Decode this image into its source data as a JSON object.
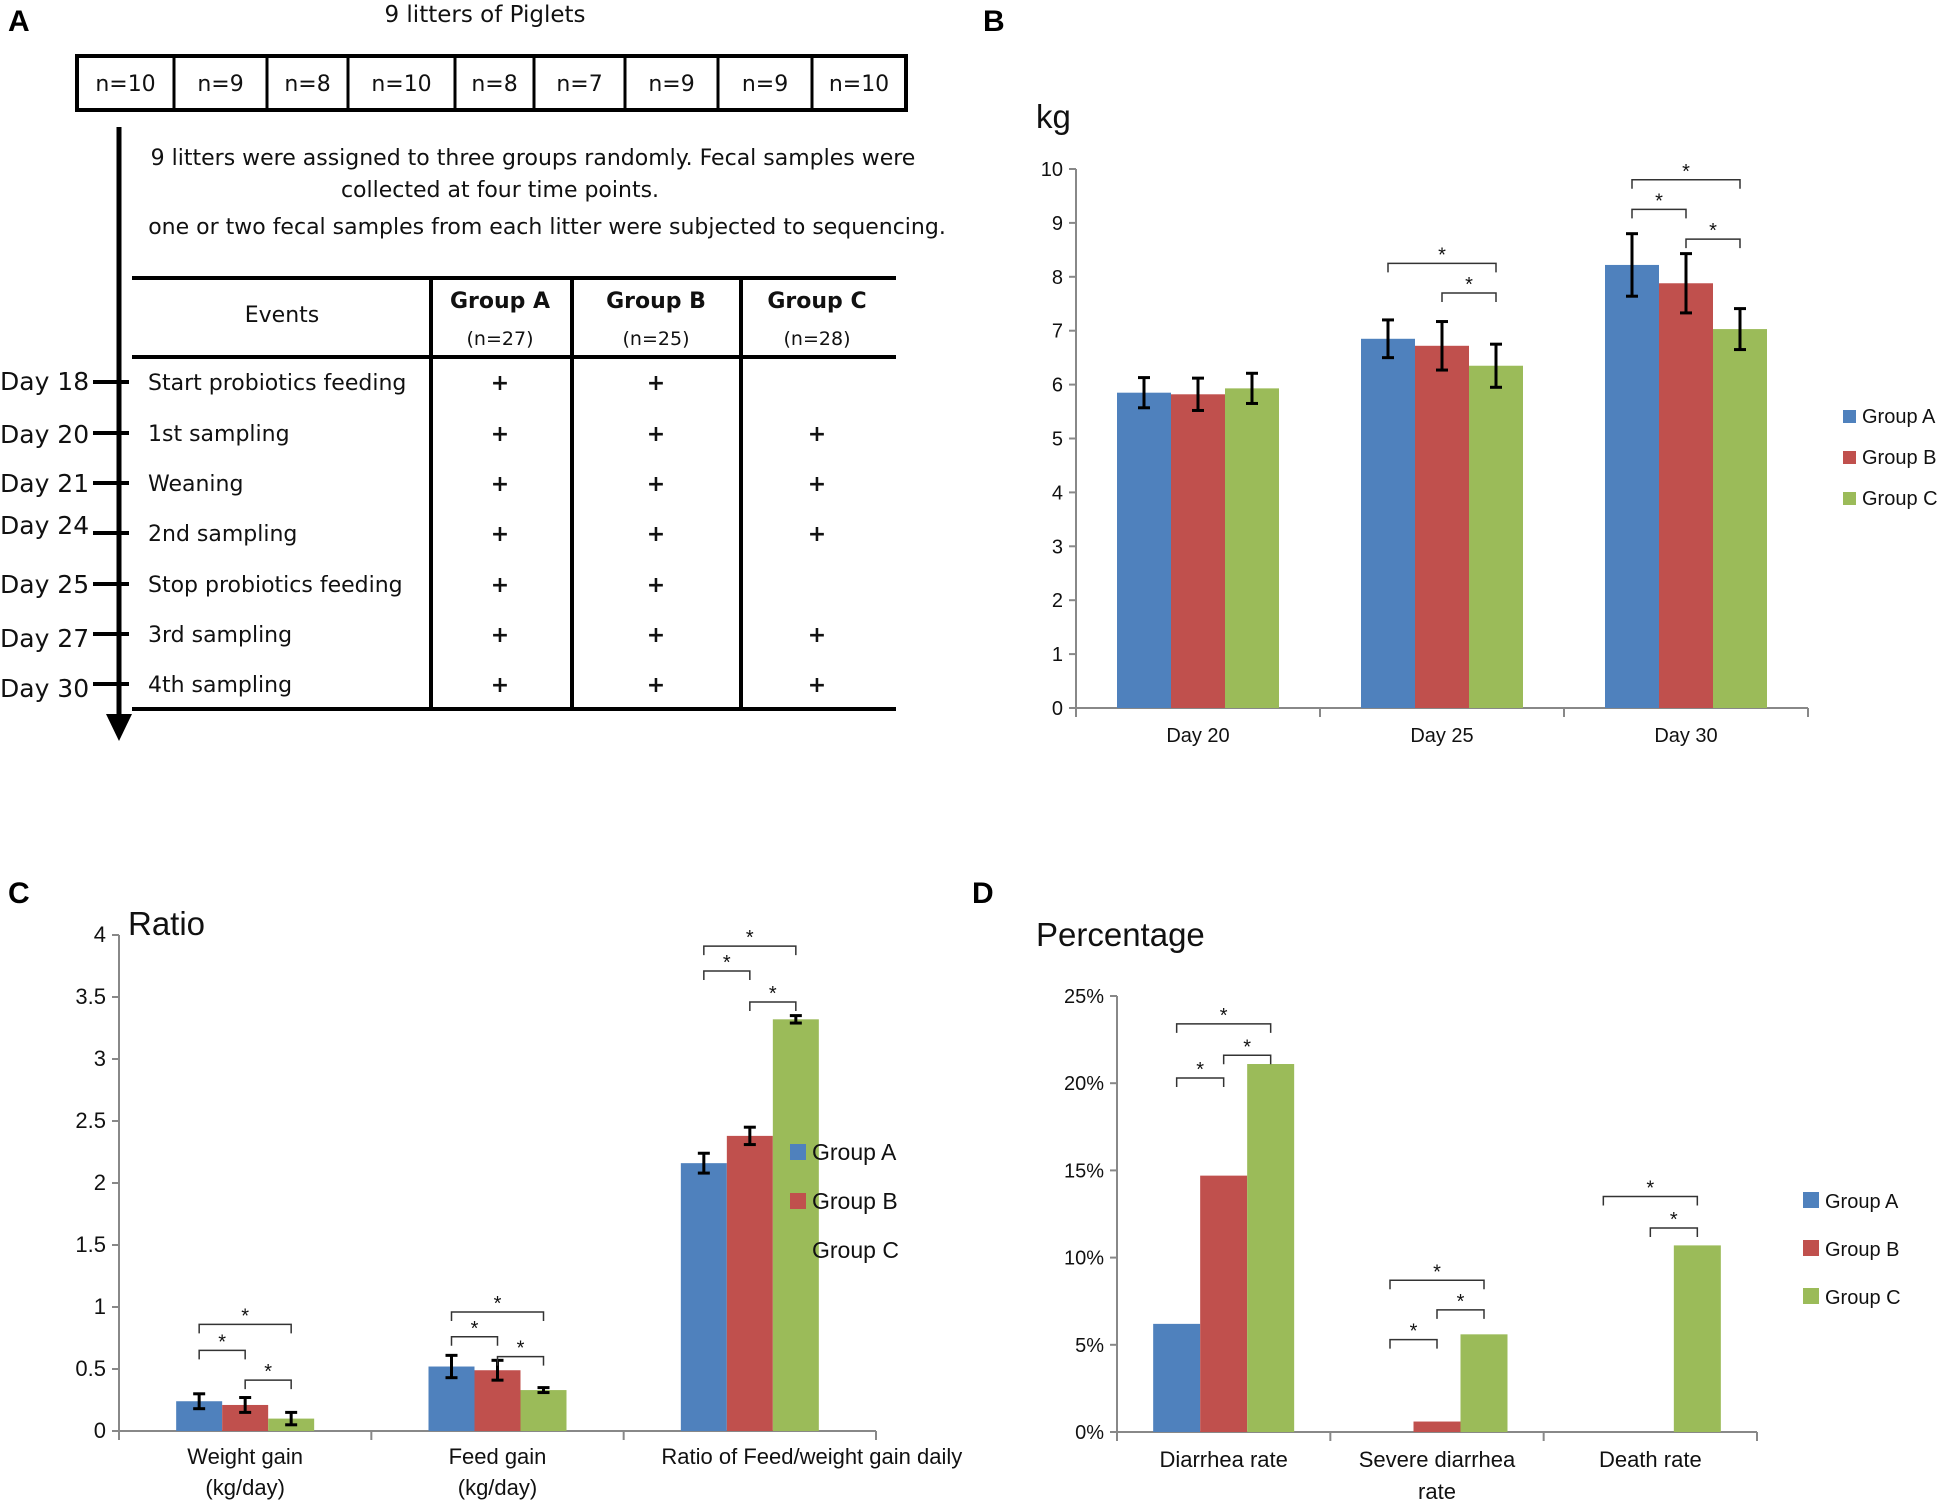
{
  "panels": {
    "a": "A",
    "b": "B",
    "c": "C",
    "d": "D"
  },
  "colors": {
    "group_a": "#4f81bd",
    "group_b": "#c0504d",
    "group_c": "#9bbb59"
  },
  "legend": [
    "Group A",
    "Group B",
    "Group C"
  ],
  "panel_a": {
    "title": "9 litters of Piglets",
    "litters": [
      "n=10",
      "n=9",
      "n=8",
      "n=10",
      "n=8",
      "n=7",
      "n=9",
      "n=9",
      "n=10"
    ],
    "description": [
      "9 litters were assigned to three groups randomly.  Fecal samples were",
      "collected at four time points.",
      "one or two fecal samples from each litter were subjected to sequencing."
    ],
    "table": {
      "headers": [
        "Events",
        "Group A",
        "Group B",
        "Group C"
      ],
      "subheaders": [
        "",
        "(n=27)",
        "(n=25)",
        "(n=28)"
      ],
      "rows": [
        {
          "day": "Day 18",
          "event": "Start probiotics feeding",
          "a": "+",
          "b": "+",
          "c": ""
        },
        {
          "day": "Day 20",
          "event": "1st sampling",
          "a": "+",
          "b": "+",
          "c": "+"
        },
        {
          "day": "Day 21",
          "event": "Weaning",
          "a": "+",
          "b": "+",
          "c": "+"
        },
        {
          "day": "Day 24",
          "event": "2nd sampling",
          "a": "+",
          "b": "+",
          "c": "+"
        },
        {
          "day": "Day 25",
          "event": "Stop probiotics feeding",
          "a": "+",
          "b": "+",
          "c": ""
        },
        {
          "day": "Day 27",
          "event": "3rd sampling",
          "a": "+",
          "b": "+",
          "c": "+"
        },
        {
          "day": "Day 30",
          "event": "4th sampling",
          "a": "+",
          "b": "+",
          "c": "+"
        }
      ]
    }
  },
  "chart_data": [
    {
      "id": "B",
      "type": "bar",
      "title": "",
      "ylabel": "kg",
      "xlabel": "",
      "categories": [
        "Day 20",
        "Day 25",
        "Day 30"
      ],
      "ylim": [
        0,
        10
      ],
      "yticks": [
        "0",
        "1",
        "2",
        "3",
        "4",
        "5",
        "6",
        "7",
        "8",
        "9",
        "10"
      ],
      "series": [
        {
          "name": "Group A",
          "values": [
            5.85,
            6.85,
            8.22
          ],
          "errors": [
            0.28,
            0.35,
            0.58
          ]
        },
        {
          "name": "Group B",
          "values": [
            5.82,
            6.72,
            7.88
          ],
          "errors": [
            0.3,
            0.45,
            0.55
          ]
        },
        {
          "name": "Group C",
          "values": [
            5.93,
            6.35,
            7.03
          ],
          "errors": [
            0.28,
            0.4,
            0.38
          ]
        }
      ],
      "significance": [
        {
          "category": 1,
          "from": 0,
          "to": 2,
          "y": 8.25,
          "label": "*"
        },
        {
          "category": 1,
          "from": 1,
          "to": 2,
          "y": 7.7,
          "label": "*"
        },
        {
          "category": 2,
          "from": 0,
          "to": 2,
          "y": 9.8,
          "label": "*"
        },
        {
          "category": 2,
          "from": 0,
          "to": 1,
          "y": 9.25,
          "label": "*"
        },
        {
          "category": 2,
          "from": 1,
          "to": 2,
          "y": 8.7,
          "label": "*"
        }
      ],
      "legend_position": "right"
    },
    {
      "id": "C",
      "type": "bar",
      "title": "",
      "ylabel": "Ratio",
      "xlabel": "",
      "categories": [
        "Weight gain\n(kg/day)",
        "Feed gain\n(kg/day)",
        "Ratio of Feed/weight gain daily"
      ],
      "ylim": [
        0,
        4
      ],
      "yticks": [
        "0",
        "0.5",
        "1",
        "1.5",
        "2",
        "2.5",
        "3",
        "3.5",
        "4"
      ],
      "series": [
        {
          "name": "Group A",
          "values": [
            0.24,
            0.52,
            2.16
          ],
          "errors": [
            0.06,
            0.09,
            0.08
          ]
        },
        {
          "name": "Group B",
          "values": [
            0.21,
            0.49,
            2.38
          ],
          "errors": [
            0.06,
            0.08,
            0.07
          ]
        },
        {
          "name": "Group C",
          "values": [
            0.1,
            0.33,
            3.32
          ],
          "errors": [
            0.05,
            0.02,
            0.03
          ]
        }
      ],
      "significance": [
        {
          "category": 0,
          "from": 0,
          "to": 2,
          "y": 0.86,
          "label": "*"
        },
        {
          "category": 0,
          "from": 0,
          "to": 1,
          "y": 0.65,
          "label": "*"
        },
        {
          "category": 0,
          "from": 1,
          "to": 2,
          "y": 0.41,
          "label": "*"
        },
        {
          "category": 1,
          "from": 0,
          "to": 2,
          "y": 0.96,
          "label": "*"
        },
        {
          "category": 1,
          "from": 0,
          "to": 1,
          "y": 0.76,
          "label": "*"
        },
        {
          "category": 1,
          "from": 1,
          "to": 2,
          "y": 0.6,
          "label": "*"
        },
        {
          "category": 2,
          "from": 0,
          "to": 2,
          "y": 3.91,
          "label": "*"
        },
        {
          "category": 2,
          "from": 0,
          "to": 1,
          "y": 3.71,
          "label": "*"
        },
        {
          "category": 2,
          "from": 1,
          "to": 2,
          "y": 3.46,
          "label": "*"
        }
      ],
      "legend_position": "right"
    },
    {
      "id": "D",
      "type": "bar",
      "title": "",
      "ylabel": "Percentage",
      "xlabel": "",
      "categories": [
        "Diarrhea rate",
        "Severe diarrhea\nrate",
        "Death rate"
      ],
      "ylim": [
        0,
        25
      ],
      "yticks": [
        "0%",
        "5%",
        "10%",
        "15%",
        "20%",
        "25%"
      ],
      "series": [
        {
          "name": "Group A",
          "values": [
            6.2,
            0,
            0
          ]
        },
        {
          "name": "Group B",
          "values": [
            14.7,
            0.6,
            0
          ]
        },
        {
          "name": "Group C",
          "values": [
            21.1,
            5.6,
            10.7
          ]
        }
      ],
      "significance": [
        {
          "category": 0,
          "from": 0,
          "to": 2,
          "y": 23.4,
          "label": "*"
        },
        {
          "category": 0,
          "from": 1,
          "to": 2,
          "y": 21.6,
          "label": "*"
        },
        {
          "category": 0,
          "from": 0,
          "to": 1,
          "y": 20.3,
          "label": "*"
        },
        {
          "category": 1,
          "from": 0,
          "to": 2,
          "y": 8.7,
          "label": "*"
        },
        {
          "category": 1,
          "from": 1,
          "to": 2,
          "y": 7.0,
          "label": "*"
        },
        {
          "category": 1,
          "from": 0,
          "to": 1,
          "y": 5.3,
          "label": "*"
        },
        {
          "category": 2,
          "from": 0,
          "to": 2,
          "y": 13.5,
          "label": "*"
        },
        {
          "category": 2,
          "from": 1,
          "to": 2,
          "y": 11.7,
          "label": "*"
        }
      ],
      "legend_position": "right"
    }
  ]
}
